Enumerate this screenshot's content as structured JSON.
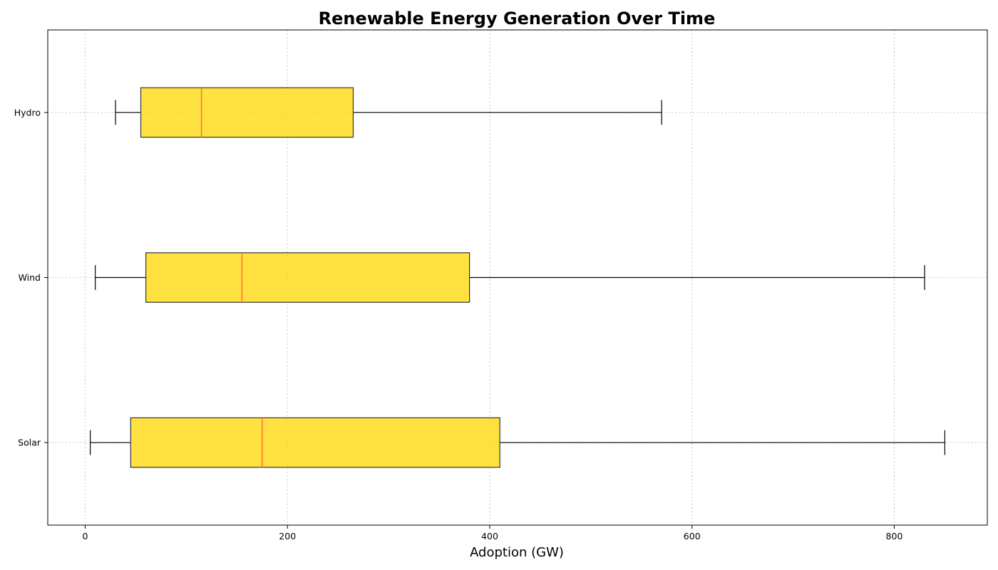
{
  "chart_data": {
    "type": "boxplot",
    "orientation": "horizontal",
    "title": "Renewable Energy Generation Over Time",
    "xlabel": "Adoption (GW)",
    "ylabel": "",
    "xlim": [
      -37,
      892
    ],
    "xticks": [
      0,
      200,
      400,
      600,
      800
    ],
    "grid": true,
    "colors": {
      "box_fill": "#FFD700",
      "box_edge": "#333333",
      "median": "#FF6F3C",
      "whisker": "#000000",
      "grid": "#c8c8c8"
    },
    "categories": [
      "Solar",
      "Wind",
      "Hydro"
    ],
    "series": [
      {
        "name": "Solar",
        "whislo": 5,
        "q1": 45,
        "median": 175,
        "q3": 410,
        "whishi": 850
      },
      {
        "name": "Wind",
        "whislo": 10,
        "q1": 60,
        "median": 155,
        "q3": 380,
        "whishi": 830
      },
      {
        "name": "Hydro",
        "whislo": 30,
        "q1": 55,
        "median": 115,
        "q3": 265,
        "whishi": 570
      }
    ]
  }
}
